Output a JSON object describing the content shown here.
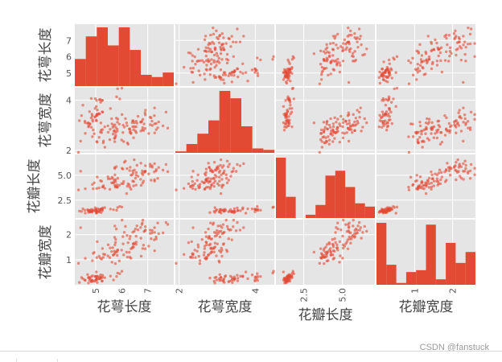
{
  "chart_data": {
    "type": "scatter",
    "variables": [
      "花萼长度",
      "花萼宽度",
      "花瓣长度",
      "花瓣宽度"
    ],
    "ranges": [
      [
        4.2,
        8.0
      ],
      [
        1.9,
        4.5
      ],
      [
        0.7,
        7.1
      ],
      [
        0.0,
        2.6
      ]
    ],
    "ticks": [
      {
        "values": [
          5,
          7
        ],
        "labels": [
          "5",
          "7"
        ]
      },
      {
        "values": [
          2,
          4
        ],
        "labels": [
          "2",
          "4"
        ]
      },
      {
        "values": [
          2.5,
          5.0
        ],
        "labels": [
          "2.5",
          "5.0"
        ]
      },
      {
        "values": [
          1,
          2
        ],
        "labels": [
          "1",
          "2"
        ]
      }
    ],
    "bottom_ticks": [
      {
        "values": [
          5,
          6,
          7
        ],
        "labels": [
          "5",
          "6",
          "7"
        ]
      },
      {
        "values": [
          2,
          4
        ],
        "labels": [
          "2",
          "4"
        ]
      },
      {
        "values": [
          2.5,
          5.0
        ],
        "labels": [
          "2.5",
          "5.0"
        ]
      },
      {
        "values": [
          1,
          2
        ],
        "labels": [
          "1",
          "2"
        ]
      }
    ],
    "side_ticks": [
      {
        "values": [
          5,
          6,
          7
        ],
        "labels": [
          "5",
          "6",
          "7"
        ]
      },
      {
        "values": [
          2,
          4
        ],
        "labels": [
          "2",
          "4"
        ]
      },
      {
        "values": [
          2.5,
          5.0
        ],
        "labels": [
          "2.5",
          "5.0"
        ]
      },
      {
        "values": [
          1,
          2
        ],
        "labels": [
          "1",
          "2"
        ]
      }
    ],
    "hist_counts": [
      [
        12,
        22,
        26,
        18,
        26,
        16,
        5,
        4,
        6
      ],
      [
        1,
        6,
        13,
        22,
        42,
        37,
        18,
        3,
        2
      ],
      [
        37,
        13,
        0,
        2,
        8,
        26,
        29,
        19,
        9,
        7
      ],
      [
        34,
        11,
        1,
        7,
        8,
        33,
        3,
        23,
        12,
        18
      ]
    ],
    "grid": true,
    "marker_color": "#e24a33",
    "face_color": "#e5e5e5"
  },
  "watermark": "CSDN @fanstuck"
}
